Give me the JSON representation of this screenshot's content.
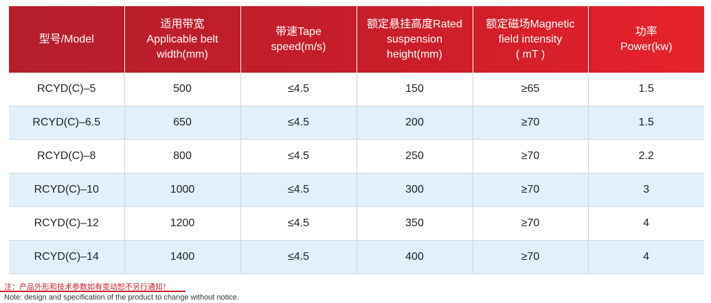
{
  "table": {
    "headers": [
      [
        "型号/Model"
      ],
      [
        "适用带宽",
        "Applicable belt",
        "width(mm)"
      ],
      [
        "带速Tape",
        "speed(m/s)"
      ],
      [
        "额定悬挂高度Rated",
        "suspension",
        "height(mm)"
      ],
      [
        "额定磁场Magnetic",
        "field intensity",
        "( mT )"
      ],
      [
        "功率",
        "Power(kw)"
      ]
    ],
    "rows": [
      [
        "RCYD(C)–5",
        "500",
        "≤4.5",
        "150",
        "≥65",
        "1.5"
      ],
      [
        "RCYD(C)–6.5",
        "650",
        "≤4.5",
        "200",
        "≥70",
        "1.5"
      ],
      [
        "RCYD(C)–8",
        "800",
        "≤4.5",
        "250",
        "≥70",
        "2.2"
      ],
      [
        "RCYD(C)–10",
        "1000",
        "≤4.5",
        "300",
        "≥70",
        "3"
      ],
      [
        "RCYD(C)–12",
        "1200",
        "≤4.5",
        "350",
        "≥70",
        "4"
      ],
      [
        "RCYD(C)–14",
        "1400",
        "≤4.5",
        "400",
        "≥70",
        "4"
      ]
    ]
  },
  "notes": {
    "cn": "注：产品外形和技术参数如有变动恕不另行通知！",
    "en": "Note: design and specification of the product to change without notice."
  },
  "colors": {
    "header_red": "#c81e2a",
    "row_alt_blue": "#e1f0fb",
    "note_red": "#c41e2a"
  }
}
